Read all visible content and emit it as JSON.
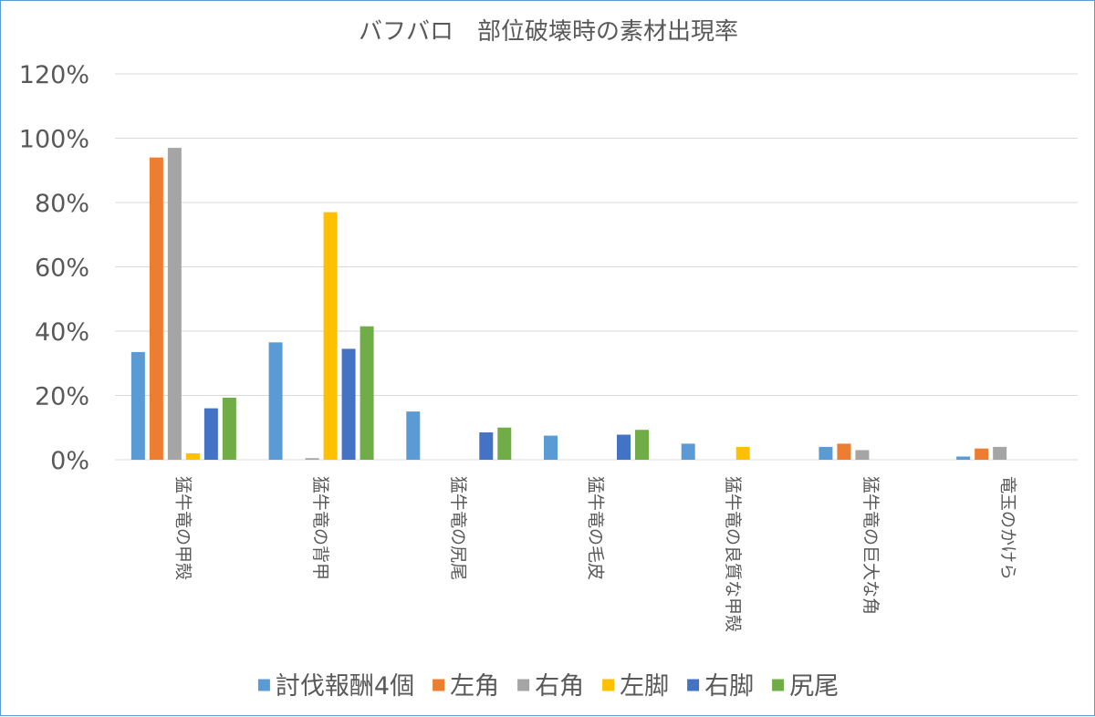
{
  "chart_data": {
    "type": "bar",
    "title": "バフバロ　部位破壊時の素材出現率",
    "xlabel": "",
    "ylabel": "",
    "ylim": [
      0,
      1.2
    ],
    "yticks": [
      0,
      0.2,
      0.4,
      0.6,
      0.8,
      1.0,
      1.2
    ],
    "ytick_labels": [
      "0%",
      "20%",
      "40%",
      "60%",
      "80%",
      "100%",
      "120%"
    ],
    "grid": true,
    "legend_position": "bottom",
    "categories": [
      "猛牛竜の甲殻",
      "猛牛竜の背甲",
      "猛牛竜の尻尾",
      "猛牛竜の毛皮",
      "猛牛竜の良質な甲殻",
      "猛牛竜の巨大な角",
      "竜玉のかけら"
    ],
    "series": [
      {
        "name": "討伐報酬4個",
        "color": "#5b9bd5",
        "values": [
          0.335,
          0.365,
          0.15,
          0.075,
          0.05,
          0.04,
          0.01
        ]
      },
      {
        "name": "左角",
        "color": "#ed7d31",
        "values": [
          0.94,
          0,
          0,
          0,
          0,
          0.05,
          0.035
        ]
      },
      {
        "name": "右角",
        "color": "#a5a5a5",
        "values": [
          0.97,
          0.005,
          0,
          0,
          0,
          0.03,
          0.04
        ]
      },
      {
        "name": "左脚",
        "color": "#ffc000",
        "values": [
          0.02,
          0.77,
          0,
          0,
          0.04,
          0,
          0
        ]
      },
      {
        "name": "右脚",
        "color": "#4472c4",
        "values": [
          0.16,
          0.345,
          0.085,
          0.078,
          0,
          0,
          0
        ]
      },
      {
        "name": "尻尾",
        "color": "#70ad47",
        "values": [
          0.193,
          0.415,
          0.1,
          0.093,
          0,
          0,
          0
        ]
      }
    ]
  }
}
